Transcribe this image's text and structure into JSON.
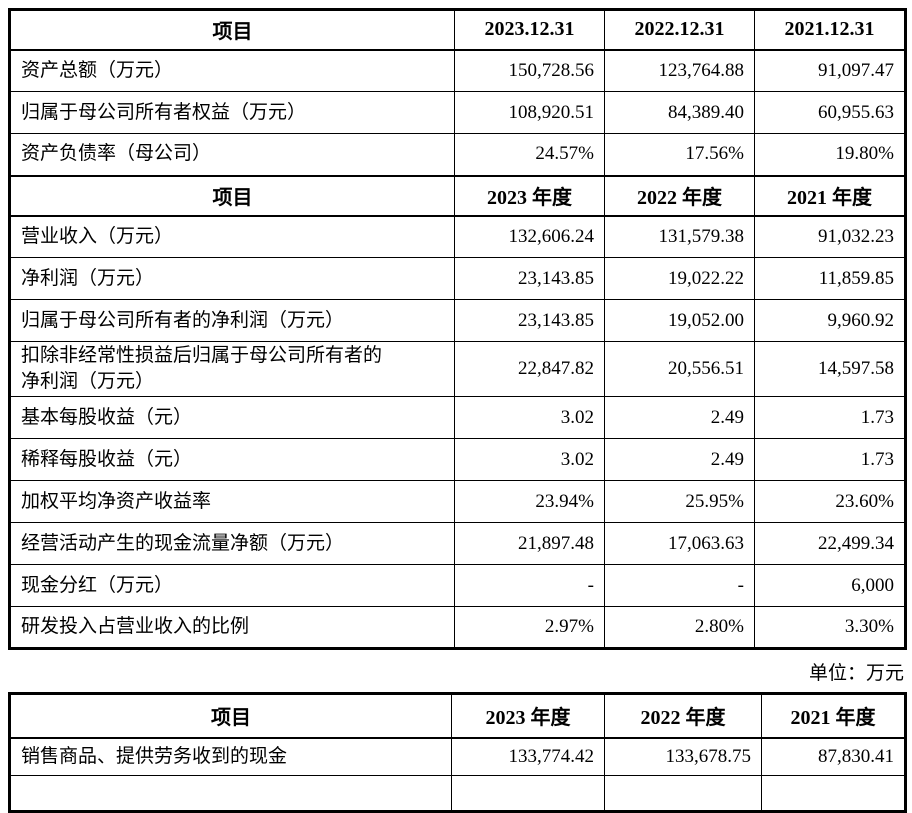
{
  "colors": {
    "border": "#000000",
    "text": "#000000",
    "background": "#ffffff"
  },
  "unit_note": "单位：万元",
  "table1": {
    "rows": [
      {
        "type": "header",
        "cells": [
          "项目",
          "2023.12.31",
          "2022.12.31",
          "2021.12.31"
        ]
      },
      {
        "type": "data",
        "cells": [
          "资产总额（万元）",
          "150,728.56",
          "123,764.88",
          "91,097.47"
        ]
      },
      {
        "type": "data",
        "cells": [
          "归属于母公司所有者权益（万元）",
          "108,920.51",
          "84,389.40",
          "60,955.63"
        ]
      },
      {
        "type": "data",
        "cells": [
          "资产负债率（母公司）",
          "24.57%",
          "17.56%",
          "19.80%"
        ]
      },
      {
        "type": "header",
        "cells": [
          "项目",
          "2023 年度",
          "2022 年度",
          "2021 年度"
        ]
      },
      {
        "type": "data",
        "cells": [
          "营业收入（万元）",
          "132,606.24",
          "131,579.38",
          "91,032.23"
        ]
      },
      {
        "type": "data",
        "cells": [
          "净利润（万元）",
          "23,143.85",
          "19,022.22",
          "11,859.85"
        ]
      },
      {
        "type": "data",
        "cells": [
          "归属于母公司所有者的净利润（万元）",
          "23,143.85",
          "19,052.00",
          "9,960.92"
        ]
      },
      {
        "type": "data",
        "tall": true,
        "cells": [
          "扣除非经常性损益后归属于母公司所有者的\n净利润（万元）",
          "22,847.82",
          "20,556.51",
          "14,597.58"
        ]
      },
      {
        "type": "data",
        "cells": [
          "基本每股收益（元）",
          "3.02",
          "2.49",
          "1.73"
        ]
      },
      {
        "type": "data",
        "cells": [
          "稀释每股收益（元）",
          "3.02",
          "2.49",
          "1.73"
        ]
      },
      {
        "type": "data",
        "cells": [
          "加权平均净资产收益率",
          "23.94%",
          "25.95%",
          "23.60%"
        ]
      },
      {
        "type": "data",
        "cells": [
          "经营活动产生的现金流量净额（万元）",
          "21,897.48",
          "17,063.63",
          "22,499.34"
        ]
      },
      {
        "type": "data",
        "cells": [
          "现金分红（万元）",
          "-",
          "-",
          "6,000"
        ]
      },
      {
        "type": "data",
        "cells": [
          "研发投入占营业收入的比例",
          "2.97%",
          "2.80%",
          "3.30%"
        ]
      }
    ]
  },
  "table2": {
    "rows": [
      {
        "type": "header",
        "cells": [
          "项目",
          "2023 年度",
          "2022 年度",
          "2021 年度"
        ]
      },
      {
        "type": "data",
        "cells": [
          "销售商品、提供劳务收到的现金",
          "133,774.42",
          "133,678.75",
          "87,830.41"
        ]
      },
      {
        "type": "data",
        "partial": true,
        "cells": [
          "",
          "",
          "",
          ""
        ]
      }
    ]
  }
}
